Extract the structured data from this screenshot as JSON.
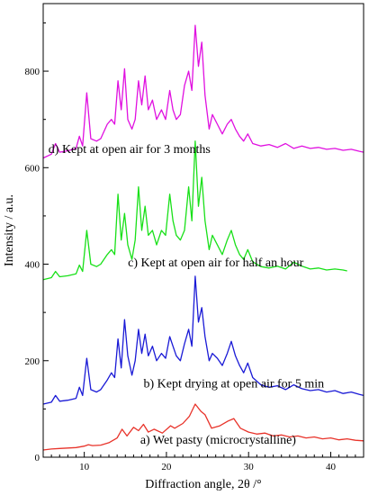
{
  "chart_data": {
    "type": "line",
    "title": "",
    "xlabel": "Diffraction angle, 2θ /°",
    "ylabel": "Intensity / a.u.",
    "xlim": [
      5,
      44
    ],
    "ylim": [
      0,
      940
    ],
    "x_ticks": [
      10,
      20,
      30,
      40
    ],
    "x_tick_labels": [
      "10",
      "20",
      "30",
      "40"
    ],
    "y_ticks": [
      0,
      200,
      400,
      600,
      800
    ],
    "y_tick_labels": [
      "0",
      "200",
      "400",
      "600",
      "800"
    ],
    "grid": false,
    "legend": "none",
    "series": [
      {
        "annotation": "a) Wet pasty (microcrystalline)",
        "color": "#e8332a",
        "points": [
          [
            5,
            15
          ],
          [
            6,
            17
          ],
          [
            7,
            18
          ],
          [
            8,
            19
          ],
          [
            9,
            20
          ],
          [
            10,
            23
          ],
          [
            10.5,
            26
          ],
          [
            11,
            24
          ],
          [
            12,
            25
          ],
          [
            13,
            30
          ],
          [
            14,
            40
          ],
          [
            14.6,
            58
          ],
          [
            15.2,
            44
          ],
          [
            16,
            62
          ],
          [
            16.6,
            55
          ],
          [
            17.2,
            68
          ],
          [
            17.8,
            52
          ],
          [
            18.5,
            58
          ],
          [
            19.5,
            50
          ],
          [
            20.5,
            65
          ],
          [
            21,
            60
          ],
          [
            22,
            70
          ],
          [
            22.8,
            85
          ],
          [
            23.5,
            110
          ],
          [
            24.2,
            95
          ],
          [
            24.7,
            88
          ],
          [
            25.5,
            60
          ],
          [
            26.5,
            65
          ],
          [
            27.5,
            75
          ],
          [
            28.2,
            80
          ],
          [
            29,
            60
          ],
          [
            30,
            52
          ],
          [
            31,
            48
          ],
          [
            32,
            50
          ],
          [
            33,
            44
          ],
          [
            34,
            46
          ],
          [
            35,
            42
          ],
          [
            36,
            44
          ],
          [
            37,
            40
          ],
          [
            38,
            42
          ],
          [
            39,
            38
          ],
          [
            40,
            40
          ],
          [
            41,
            36
          ],
          [
            42,
            38
          ],
          [
            43,
            35
          ],
          [
            44,
            34
          ]
        ]
      },
      {
        "annotation": "b) Kept drying at open air for 5 min",
        "color": "#1a1ad6",
        "points": [
          [
            5,
            110
          ],
          [
            6,
            114
          ],
          [
            6.5,
            128
          ],
          [
            7,
            116
          ],
          [
            8,
            118
          ],
          [
            9,
            122
          ],
          [
            9.4,
            145
          ],
          [
            9.8,
            128
          ],
          [
            10.3,
            205
          ],
          [
            10.8,
            140
          ],
          [
            11.5,
            135
          ],
          [
            12,
            140
          ],
          [
            12.8,
            160
          ],
          [
            13.3,
            175
          ],
          [
            13.7,
            165
          ],
          [
            14.1,
            245
          ],
          [
            14.5,
            185
          ],
          [
            14.9,
            285
          ],
          [
            15.3,
            210
          ],
          [
            15.8,
            170
          ],
          [
            16.2,
            200
          ],
          [
            16.6,
            265
          ],
          [
            17,
            215
          ],
          [
            17.4,
            255
          ],
          [
            17.8,
            210
          ],
          [
            18.3,
            230
          ],
          [
            18.8,
            200
          ],
          [
            19.4,
            215
          ],
          [
            19.9,
            205
          ],
          [
            20.4,
            250
          ],
          [
            20.8,
            230
          ],
          [
            21.2,
            210
          ],
          [
            21.7,
            200
          ],
          [
            22.2,
            235
          ],
          [
            22.7,
            265
          ],
          [
            23.1,
            230
          ],
          [
            23.5,
            375
          ],
          [
            23.9,
            280
          ],
          [
            24.3,
            310
          ],
          [
            24.7,
            250
          ],
          [
            25.2,
            200
          ],
          [
            25.6,
            215
          ],
          [
            26.2,
            205
          ],
          [
            26.8,
            190
          ],
          [
            27.4,
            215
          ],
          [
            27.9,
            240
          ],
          [
            28.4,
            210
          ],
          [
            28.9,
            190
          ],
          [
            29.4,
            175
          ],
          [
            29.9,
            195
          ],
          [
            30.5,
            165
          ],
          [
            31.5,
            150
          ],
          [
            32.5,
            145
          ],
          [
            33.5,
            148
          ],
          [
            34.5,
            140
          ],
          [
            35.5,
            150
          ],
          [
            36.5,
            142
          ],
          [
            37.5,
            138
          ],
          [
            38.5,
            140
          ],
          [
            39.5,
            135
          ],
          [
            40.5,
            138
          ],
          [
            41.5,
            132
          ],
          [
            42.5,
            135
          ],
          [
            43.5,
            130
          ],
          [
            44,
            128
          ]
        ]
      },
      {
        "annotation": "c) Kept at open air for half an hour",
        "color": "#18e018",
        "points": [
          [
            5,
            368
          ],
          [
            6,
            372
          ],
          [
            6.5,
            385
          ],
          [
            7,
            374
          ],
          [
            8,
            376
          ],
          [
            9,
            380
          ],
          [
            9.4,
            398
          ],
          [
            9.8,
            385
          ],
          [
            10.3,
            470
          ],
          [
            10.8,
            400
          ],
          [
            11.5,
            395
          ],
          [
            12,
            400
          ],
          [
            12.8,
            420
          ],
          [
            13.3,
            430
          ],
          [
            13.7,
            420
          ],
          [
            14.1,
            545
          ],
          [
            14.5,
            450
          ],
          [
            14.9,
            505
          ],
          [
            15.3,
            440
          ],
          [
            15.8,
            410
          ],
          [
            16.2,
            450
          ],
          [
            16.6,
            560
          ],
          [
            17,
            470
          ],
          [
            17.4,
            520
          ],
          [
            17.8,
            460
          ],
          [
            18.3,
            470
          ],
          [
            18.8,
            440
          ],
          [
            19.4,
            470
          ],
          [
            19.9,
            460
          ],
          [
            20.4,
            545
          ],
          [
            20.8,
            490
          ],
          [
            21.2,
            460
          ],
          [
            21.7,
            450
          ],
          [
            22.2,
            470
          ],
          [
            22.7,
            560
          ],
          [
            23.1,
            490
          ],
          [
            23.5,
            655
          ],
          [
            23.9,
            520
          ],
          [
            24.3,
            580
          ],
          [
            24.7,
            490
          ],
          [
            25.2,
            430
          ],
          [
            25.6,
            460
          ],
          [
            26.2,
            440
          ],
          [
            26.8,
            420
          ],
          [
            27.4,
            450
          ],
          [
            27.9,
            470
          ],
          [
            28.4,
            440
          ],
          [
            28.9,
            420
          ],
          [
            29.4,
            410
          ],
          [
            29.9,
            430
          ],
          [
            30.5,
            405
          ],
          [
            31.5,
            395
          ],
          [
            32.5,
            392
          ],
          [
            33.5,
            396
          ],
          [
            34.5,
            390
          ],
          [
            35.5,
            404
          ],
          [
            36.5,
            396
          ],
          [
            37.5,
            390
          ],
          [
            38.5,
            392
          ],
          [
            39.5,
            388
          ],
          [
            40.5,
            390
          ],
          [
            41.5,
            388
          ],
          [
            42,
            386
          ]
        ]
      },
      {
        "annotation": "d) Kept at open air for 3 months",
        "color": "#e010e0",
        "points": [
          [
            5,
            620
          ],
          [
            6,
            628
          ],
          [
            6.5,
            650
          ],
          [
            7,
            632
          ],
          [
            8,
            635
          ],
          [
            9,
            640
          ],
          [
            9.4,
            665
          ],
          [
            9.8,
            645
          ],
          [
            10.3,
            755
          ],
          [
            10.8,
            660
          ],
          [
            11.5,
            655
          ],
          [
            12,
            660
          ],
          [
            12.8,
            690
          ],
          [
            13.3,
            700
          ],
          [
            13.7,
            690
          ],
          [
            14.1,
            780
          ],
          [
            14.5,
            720
          ],
          [
            14.9,
            805
          ],
          [
            15.3,
            700
          ],
          [
            15.8,
            680
          ],
          [
            16.2,
            700
          ],
          [
            16.6,
            780
          ],
          [
            17,
            730
          ],
          [
            17.4,
            790
          ],
          [
            17.8,
            720
          ],
          [
            18.3,
            740
          ],
          [
            18.8,
            700
          ],
          [
            19.4,
            720
          ],
          [
            19.9,
            700
          ],
          [
            20.4,
            760
          ],
          [
            20.8,
            720
          ],
          [
            21.2,
            700
          ],
          [
            21.7,
            710
          ],
          [
            22.2,
            770
          ],
          [
            22.7,
            800
          ],
          [
            23.1,
            760
          ],
          [
            23.5,
            895
          ],
          [
            23.9,
            810
          ],
          [
            24.3,
            860
          ],
          [
            24.7,
            750
          ],
          [
            25.2,
            680
          ],
          [
            25.6,
            710
          ],
          [
            26.2,
            690
          ],
          [
            26.8,
            670
          ],
          [
            27.4,
            690
          ],
          [
            27.9,
            700
          ],
          [
            28.4,
            680
          ],
          [
            28.9,
            665
          ],
          [
            29.4,
            655
          ],
          [
            29.9,
            670
          ],
          [
            30.5,
            650
          ],
          [
            31.5,
            645
          ],
          [
            32.5,
            648
          ],
          [
            33.5,
            642
          ],
          [
            34.5,
            650
          ],
          [
            35.5,
            640
          ],
          [
            36.5,
            645
          ],
          [
            37.5,
            640
          ],
          [
            38.5,
            642
          ],
          [
            39.5,
            638
          ],
          [
            40.5,
            640
          ],
          [
            41.5,
            636
          ],
          [
            42.5,
            638
          ],
          [
            43.5,
            634
          ],
          [
            44,
            632
          ]
        ]
      }
    ]
  }
}
